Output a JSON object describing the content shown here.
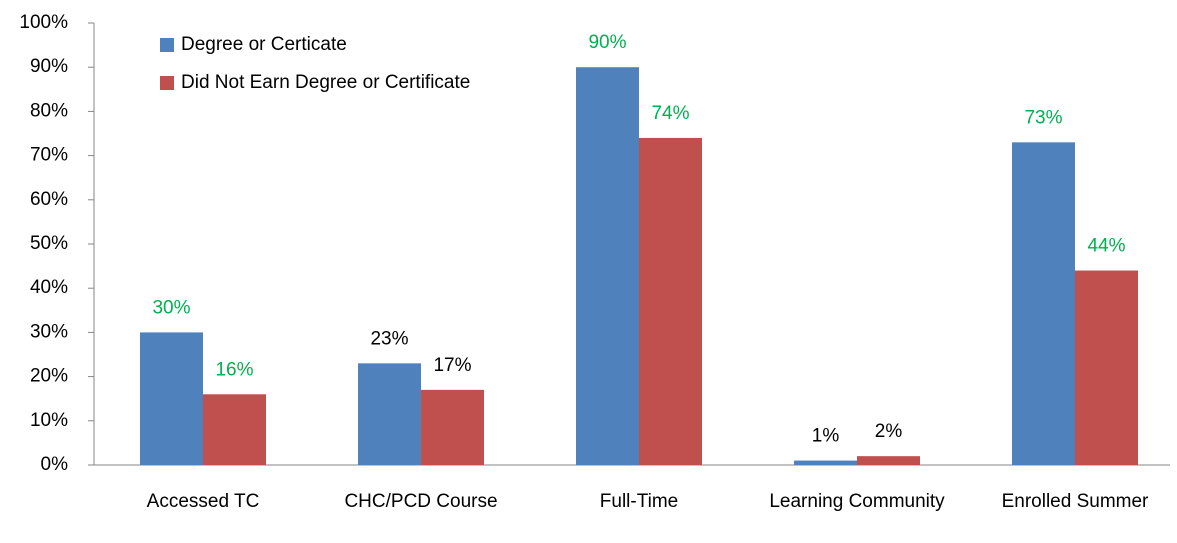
{
  "chart_data": {
    "type": "bar",
    "categories": [
      "Accessed TC",
      "CHC/PCD Course",
      "Full-Time",
      "Learning Community",
      "Enrolled Summer"
    ],
    "series": [
      {
        "name": "Degree or Certicate",
        "color": "#4f81bd",
        "values": [
          30,
          23,
          90,
          1,
          73
        ],
        "value_labels": [
          "30%",
          "23%",
          "90%",
          "1%",
          "73%"
        ],
        "value_label_colors": [
          "#00b050",
          "#000000",
          "#00b050",
          "#000000",
          "#00b050"
        ]
      },
      {
        "name": "Did Not Earn Degree or Certificate",
        "color": "#c0504d",
        "values": [
          16,
          17,
          74,
          2,
          44
        ],
        "value_labels": [
          "16%",
          "17%",
          "74%",
          "2%",
          "44%"
        ],
        "value_label_colors": [
          "#00b050",
          "#000000",
          "#00b050",
          "#000000",
          "#00b050"
        ]
      }
    ],
    "ylim": [
      0,
      100
    ],
    "yticks": [
      {
        "value": 0,
        "label": "0%"
      },
      {
        "value": 10,
        "label": "10%"
      },
      {
        "value": 20,
        "label": "20%"
      },
      {
        "value": 30,
        "label": "30%"
      },
      {
        "value": 40,
        "label": "40%"
      },
      {
        "value": 50,
        "label": "50%"
      },
      {
        "value": 60,
        "label": "60%"
      },
      {
        "value": 70,
        "label": "70%"
      },
      {
        "value": 80,
        "label": "80%"
      },
      {
        "value": 90,
        "label": "90%"
      },
      {
        "value": 100,
        "label": "100%"
      }
    ],
    "grid": false,
    "legend": "top-left"
  }
}
